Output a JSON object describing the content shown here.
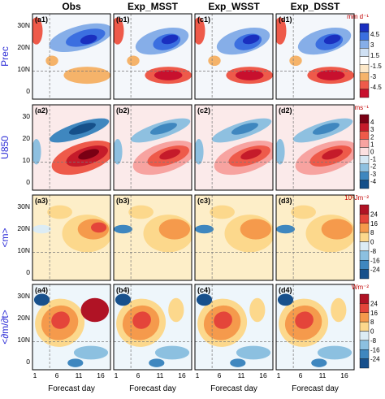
{
  "chart_data": {
    "type": "heatmap",
    "columns": [
      "Obs",
      "Exp_MSST",
      "Exp_WSST",
      "Exp_DSST"
    ],
    "rows": [
      {
        "label": "Prec",
        "unit": "mm d⁻¹",
        "panel_labels": [
          "(a1)",
          "(b1)",
          "(c1)",
          "(d1)"
        ],
        "yticks": [
          "30N",
          "20N",
          "10N",
          "0"
        ],
        "cbar_ticks": [
          "4.5",
          "3",
          "1.5",
          "-1.5",
          "-3",
          "-4.5"
        ],
        "colors": [
          "#1a2fbf",
          "#3b6fe0",
          "#86aee8",
          "#cfe0f3",
          "#ffffff",
          "#fde8c8",
          "#f5b36a",
          "#ee5a4a",
          "#c8102e"
        ]
      },
      {
        "label": "U850",
        "unit": "ms⁻¹",
        "panel_labels": [
          "(a2)",
          "(b2)",
          "(c2)",
          "(d2)"
        ],
        "yticks": [
          "30",
          "20",
          "10",
          "0"
        ],
        "cbar_ticks": [
          "4",
          "3",
          "2",
          "1",
          "0",
          "-1",
          "-2",
          "-3",
          "-4"
        ],
        "colors": [
          "#7a0014",
          "#c51b2a",
          "#ee5a4a",
          "#f7a3a0",
          "#fce0e0",
          "#d6e8f4",
          "#8ec0e0",
          "#3f87bf",
          "#15508a"
        ]
      },
      {
        "label": "<m>",
        "unit": "10⁵Jm⁻²",
        "panel_labels": [
          "(a3)",
          "(b3)",
          "(c3)",
          "(d3)"
        ],
        "yticks": [
          "30N",
          "20N",
          "10N",
          "0"
        ],
        "cbar_ticks": [
          "24",
          "16",
          "8",
          "0",
          "-8",
          "-16",
          "-24"
        ],
        "colors": [
          "#b01325",
          "#e4453a",
          "#f59a4c",
          "#fcd88c",
          "#dcecf4",
          "#8cc0e0",
          "#3f87bf",
          "#17508c"
        ]
      },
      {
        "label": "<∂m/∂t>",
        "unit": "Wm⁻²",
        "panel_labels": [
          "(a4)",
          "(b4)",
          "(c4)",
          "(d4)"
        ],
        "yticks": [
          "30N",
          "20N",
          "10N",
          "0"
        ],
        "cbar_ticks": [
          "24",
          "16",
          "8",
          "0",
          "-8",
          "-16",
          "-24"
        ],
        "colors": [
          "#b01325",
          "#e4453a",
          "#f59a4c",
          "#fcd88c",
          "#dcecf4",
          "#8cc0e0",
          "#3f87bf",
          "#17508c"
        ]
      }
    ],
    "xticks": [
      "1",
      "6",
      "11",
      "16"
    ],
    "xlabel": "Forecast day"
  }
}
